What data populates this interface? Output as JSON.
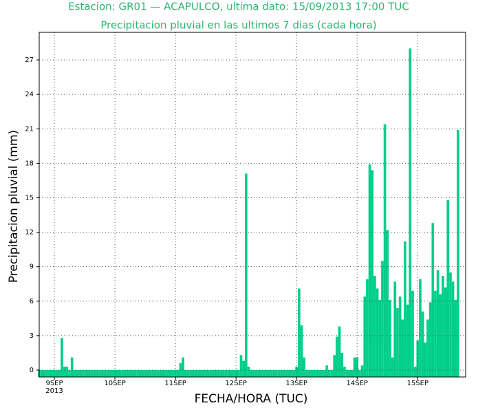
{
  "chart_data": {
    "type": "bar",
    "title": "Estacion: GR01 — ACAPULCO, ultima dato: 15/09/2013 17:00 TUC",
    "subtitle": "Precipitacion pluvial en las ultimos 7 dias (cada hora)",
    "y_label": "Precipitacion pluvial (mm)",
    "x_label": "FECHA/HORA (TUC)",
    "year_label": "2013",
    "color": "#00cf8a",
    "grid": true,
    "xlim": [
      -6,
      163
    ],
    "ylim": [
      -0.6,
      29.4
    ],
    "xticks": [
      {
        "value": 0,
        "label": "9SEP"
      },
      {
        "value": 24,
        "label": "10SEP"
      },
      {
        "value": 48,
        "label": "11SEP"
      },
      {
        "value": 72,
        "label": "12SEP"
      },
      {
        "value": 96,
        "label": "13SEP"
      },
      {
        "value": 120,
        "label": "14SEP"
      },
      {
        "value": 144,
        "label": "15SEP"
      }
    ],
    "yticks": [
      0,
      3,
      6,
      9,
      12,
      15,
      18,
      21,
      24,
      27
    ],
    "x": [
      -6,
      -5,
      -4,
      -3,
      -2,
      -1,
      0,
      1,
      2,
      3,
      4,
      5,
      6,
      7,
      8,
      9,
      10,
      11,
      12,
      13,
      14,
      15,
      16,
      17,
      18,
      19,
      20,
      21,
      22,
      23,
      24,
      25,
      26,
      27,
      28,
      29,
      30,
      31,
      32,
      33,
      34,
      35,
      36,
      37,
      38,
      39,
      40,
      41,
      42,
      43,
      44,
      45,
      46,
      47,
      48,
      49,
      50,
      51,
      52,
      53,
      54,
      55,
      56,
      57,
      58,
      59,
      60,
      61,
      62,
      63,
      64,
      65,
      66,
      67,
      68,
      69,
      70,
      71,
      72,
      73,
      74,
      75,
      76,
      77,
      78,
      79,
      80,
      81,
      82,
      83,
      84,
      85,
      86,
      87,
      88,
      89,
      90,
      91,
      92,
      93,
      94,
      95,
      96,
      97,
      98,
      99,
      100,
      101,
      102,
      103,
      104,
      105,
      106,
      107,
      108,
      109,
      110,
      111,
      112,
      113,
      114,
      115,
      116,
      117,
      118,
      119,
      120,
      121,
      122,
      123,
      124,
      125,
      126,
      127,
      128,
      129,
      130,
      131,
      132,
      133,
      134,
      135,
      136,
      137,
      138,
      139,
      140,
      141,
      142,
      143,
      144,
      145,
      146,
      147,
      148,
      149,
      150,
      151,
      152,
      153,
      154,
      155,
      156,
      157,
      158,
      159,
      160
    ],
    "values": [
      0,
      0,
      0,
      0,
      0,
      0,
      0,
      0,
      0,
      2.8,
      0.3,
      0.3,
      0,
      1.1,
      0,
      0,
      0,
      0,
      0,
      0,
      0,
      0,
      0,
      0,
      0,
      0,
      0,
      0,
      0,
      0,
      0,
      0,
      0,
      0,
      0,
      0,
      0,
      0,
      0,
      0,
      0,
      0,
      0,
      0,
      0,
      0,
      0,
      0,
      0,
      0,
      0,
      0,
      0,
      0,
      0,
      0,
      0.6,
      1.1,
      0,
      0,
      0,
      0,
      0,
      0,
      0,
      0,
      0,
      0,
      0,
      0,
      0,
      0,
      0,
      0,
      0,
      0,
      0,
      0,
      0,
      0,
      1.3,
      0.8,
      17.1,
      0.3,
      0,
      0,
      0,
      0,
      0,
      0,
      0,
      0,
      0,
      0,
      0,
      0,
      0,
      0,
      0,
      0,
      0,
      0,
      0.3,
      7.1,
      3.9,
      1.1,
      0,
      0,
      0,
      0,
      0,
      0,
      0,
      0,
      0.4,
      0,
      0,
      1.3,
      2.9,
      3.8,
      1.5,
      0.3,
      0,
      0,
      0,
      1.1,
      1.1,
      0,
      0.4,
      6.4,
      7.9,
      17.9,
      17.4,
      8.2,
      7.1,
      6.1,
      9.5,
      21.4,
      12.2,
      6.1,
      1.1,
      7.7,
      5.4,
      6.4,
      4.4,
      11.2,
      5.7,
      28.0,
      6.9,
      0.3,
      2.6,
      7.9,
      5.1,
      2.4,
      4.4,
      5.9,
      12.8,
      6.9,
      8.7,
      6.6,
      8.2,
      7.2,
      14.8,
      8.5,
      7.7,
      6.1,
      20.9
    ]
  }
}
